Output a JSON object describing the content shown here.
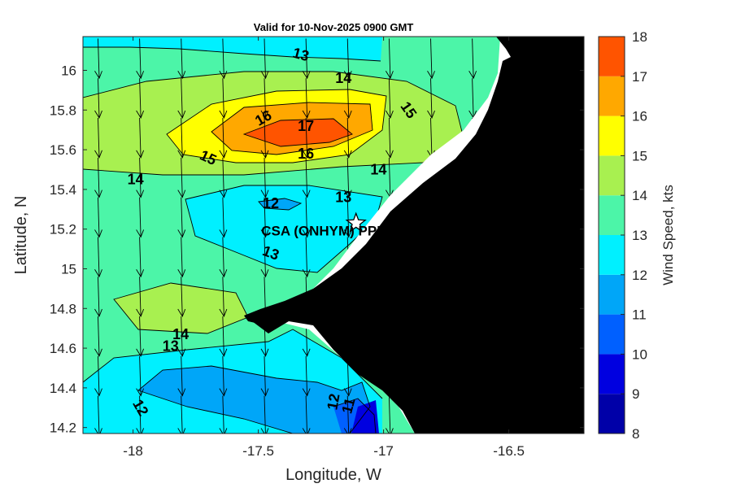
{
  "chart_data": {
    "type": "filled-contour-map",
    "title": "Valid for 10-Nov-2025 0900 GMT",
    "xlabel": "Longitude, W",
    "ylabel": "Latitude, N",
    "xlim": [
      -18.2,
      -16.2
    ],
    "ylim": [
      14.17,
      16.17
    ],
    "xticks": [
      "-18",
      "-17.5",
      "-17",
      "-16.5"
    ],
    "xtick_values": [
      -18,
      -17.5,
      -17,
      -16.5
    ],
    "yticks": [
      "16",
      "15.8",
      "15.6",
      "15.4",
      "15.2",
      "15",
      "14.8",
      "14.6",
      "14.4",
      "14.2"
    ],
    "ytick_values": [
      16,
      15.8,
      15.6,
      15.4,
      15.2,
      15,
      14.8,
      14.6,
      14.4,
      14.2
    ],
    "colorbar": {
      "label": "Wind Speed, kts",
      "ticks": [
        "18",
        "17",
        "16",
        "15",
        "14",
        "13",
        "12",
        "11",
        "10",
        "9",
        "8"
      ],
      "levels": [
        {
          "min": 8,
          "max": 9,
          "color": "#0000a8"
        },
        {
          "min": 9,
          "max": 10,
          "color": "#0000e0"
        },
        {
          "min": 10,
          "max": 11,
          "color": "#0060ff"
        },
        {
          "min": 11,
          "max": 12,
          "color": "#00a6f8"
        },
        {
          "min": 12,
          "max": 13,
          "color": "#00f0ff"
        },
        {
          "min": 13,
          "max": 14,
          "color": "#4cf5a8"
        },
        {
          "min": 14,
          "max": 15,
          "color": "#a8f050"
        },
        {
          "min": 15,
          "max": 16,
          "color": "#ffff00"
        },
        {
          "min": 16,
          "max": 17,
          "color": "#ffa800"
        },
        {
          "min": 17,
          "max": 18,
          "color": "#ff5400"
        }
      ]
    },
    "contour_labels": [
      {
        "text": "13",
        "lon": -17.33,
        "lat": 16.08,
        "angle": 15
      },
      {
        "text": "14",
        "lon": -17.16,
        "lat": 15.96,
        "angle": 0
      },
      {
        "text": "15",
        "lon": -16.9,
        "lat": 15.8,
        "angle": 55
      },
      {
        "text": "16",
        "lon": -17.48,
        "lat": 15.76,
        "angle": -30
      },
      {
        "text": "17",
        "lon": -17.31,
        "lat": 15.72,
        "angle": 0
      },
      {
        "text": "16",
        "lon": -17.31,
        "lat": 15.58,
        "angle": 0
      },
      {
        "text": "15",
        "lon": -17.7,
        "lat": 15.56,
        "angle": 25
      },
      {
        "text": "14",
        "lon": -17.02,
        "lat": 15.5,
        "angle": 0
      },
      {
        "text": "14",
        "lon": -17.99,
        "lat": 15.45,
        "angle": 0
      },
      {
        "text": "13",
        "lon": -17.16,
        "lat": 15.36,
        "angle": 0
      },
      {
        "text": "12",
        "lon": -17.45,
        "lat": 15.33,
        "angle": 0
      },
      {
        "text": "13",
        "lon": -17.45,
        "lat": 15.08,
        "angle": 20
      },
      {
        "text": "14",
        "lon": -17.81,
        "lat": 14.67,
        "angle": 0
      },
      {
        "text": "13",
        "lon": -17.85,
        "lat": 14.61,
        "angle": 0
      },
      {
        "text": "12",
        "lon": -17.97,
        "lat": 14.3,
        "angle": 60
      },
      {
        "text": "12",
        "lon": -17.2,
        "lat": 14.33,
        "angle": -80
      },
      {
        "text": "11",
        "lon": -17.14,
        "lat": 14.31,
        "angle": -75
      }
    ],
    "station": {
      "name": "CSA (ONHYM) PPL EP",
      "lon": -17.11,
      "lat": 15.23
    },
    "wind_vectors": {
      "lon_start": -18.14,
      "lon_step": 0.166,
      "lat_start": 16.14,
      "lat_step": -0.2,
      "direction": "south",
      "length_deg": 0.2
    }
  }
}
